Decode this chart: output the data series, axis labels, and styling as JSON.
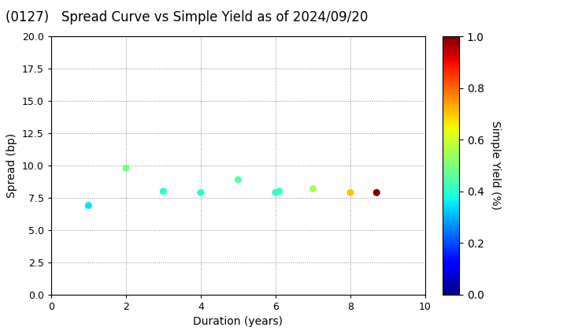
{
  "title": "(0127)   Spread Curve vs Simple Yield as of 2024/09/20",
  "xlabel": "Duration (years)",
  "ylabel": "Spread (bp)",
  "colorbar_label": "Simple Yield (%)",
  "xlim": [
    0,
    10
  ],
  "ylim": [
    0.0,
    20.0
  ],
  "xticks": [
    0,
    2,
    4,
    6,
    8,
    10
  ],
  "yticks": [
    0.0,
    2.5,
    5.0,
    7.5,
    10.0,
    12.5,
    15.0,
    17.5,
    20.0
  ],
  "colormap": "jet",
  "clim": [
    0.0,
    1.0
  ],
  "clim_ticks": [
    0.0,
    0.2,
    0.4,
    0.6,
    0.8,
    1.0
  ],
  "points": [
    {
      "duration": 1.0,
      "spread": 6.9,
      "simple_yield": 0.35
    },
    {
      "duration": 2.0,
      "spread": 9.8,
      "simple_yield": 0.49
    },
    {
      "duration": 3.0,
      "spread": 8.0,
      "simple_yield": 0.4
    },
    {
      "duration": 4.0,
      "spread": 7.9,
      "simple_yield": 0.4
    },
    {
      "duration": 5.0,
      "spread": 8.9,
      "simple_yield": 0.45
    },
    {
      "duration": 6.0,
      "spread": 7.9,
      "simple_yield": 0.4
    },
    {
      "duration": 6.1,
      "spread": 8.0,
      "simple_yield": 0.42
    },
    {
      "duration": 7.0,
      "spread": 8.2,
      "simple_yield": 0.55
    },
    {
      "duration": 8.0,
      "spread": 7.9,
      "simple_yield": 0.7
    },
    {
      "duration": 8.7,
      "spread": 7.9,
      "simple_yield": 1.0
    }
  ],
  "marker_size": 30,
  "background_color": "#ffffff",
  "grid_color": "#888888",
  "grid_style": "dotted",
  "title_fontsize": 12,
  "axis_fontsize": 10,
  "colorbar_fontsize": 10,
  "fig_width": 7.2,
  "fig_height": 4.2,
  "fig_dpi": 100
}
